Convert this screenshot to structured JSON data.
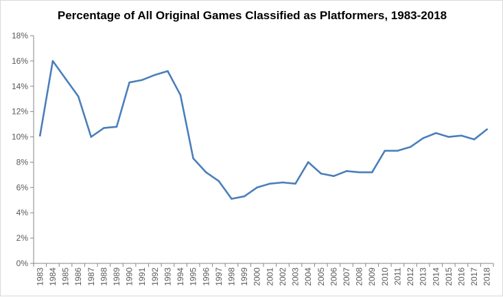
{
  "chart_data": {
    "type": "line",
    "title": "Percentage of All Original Games Classified as Platformers, 1983-2018",
    "xlabel": "",
    "ylabel": "",
    "ylim": [
      0,
      18
    ],
    "yticks": [
      "0%",
      "2%",
      "4%",
      "6%",
      "8%",
      "10%",
      "12%",
      "14%",
      "16%",
      "18%"
    ],
    "grid": false,
    "legend": "none",
    "color": "#4a7ebb",
    "categories": [
      "1983",
      "1984",
      "1985",
      "1986",
      "1987",
      "1988",
      "1989",
      "1990",
      "1991",
      "1992",
      "1993",
      "1994",
      "1995",
      "1996",
      "1997",
      "1998",
      "1999",
      "2000",
      "2001",
      "2002",
      "2003",
      "2004",
      "2005",
      "2006",
      "2007",
      "2008",
      "2009",
      "2010",
      "2011",
      "2012",
      "2013",
      "2014",
      "2015",
      "2016",
      "2017",
      "2018"
    ],
    "series": [
      {
        "name": "Platformers",
        "values": [
          10.1,
          16.0,
          14.6,
          13.2,
          10.0,
          10.7,
          10.8,
          14.3,
          14.5,
          14.9,
          15.2,
          13.3,
          8.3,
          7.2,
          6.5,
          5.1,
          5.3,
          6.0,
          6.3,
          6.4,
          6.3,
          8.0,
          7.1,
          6.9,
          7.3,
          7.2,
          7.2,
          8.9,
          8.9,
          9.2,
          9.9,
          10.3,
          10.0,
          10.1,
          9.8,
          10.6
        ]
      }
    ]
  }
}
